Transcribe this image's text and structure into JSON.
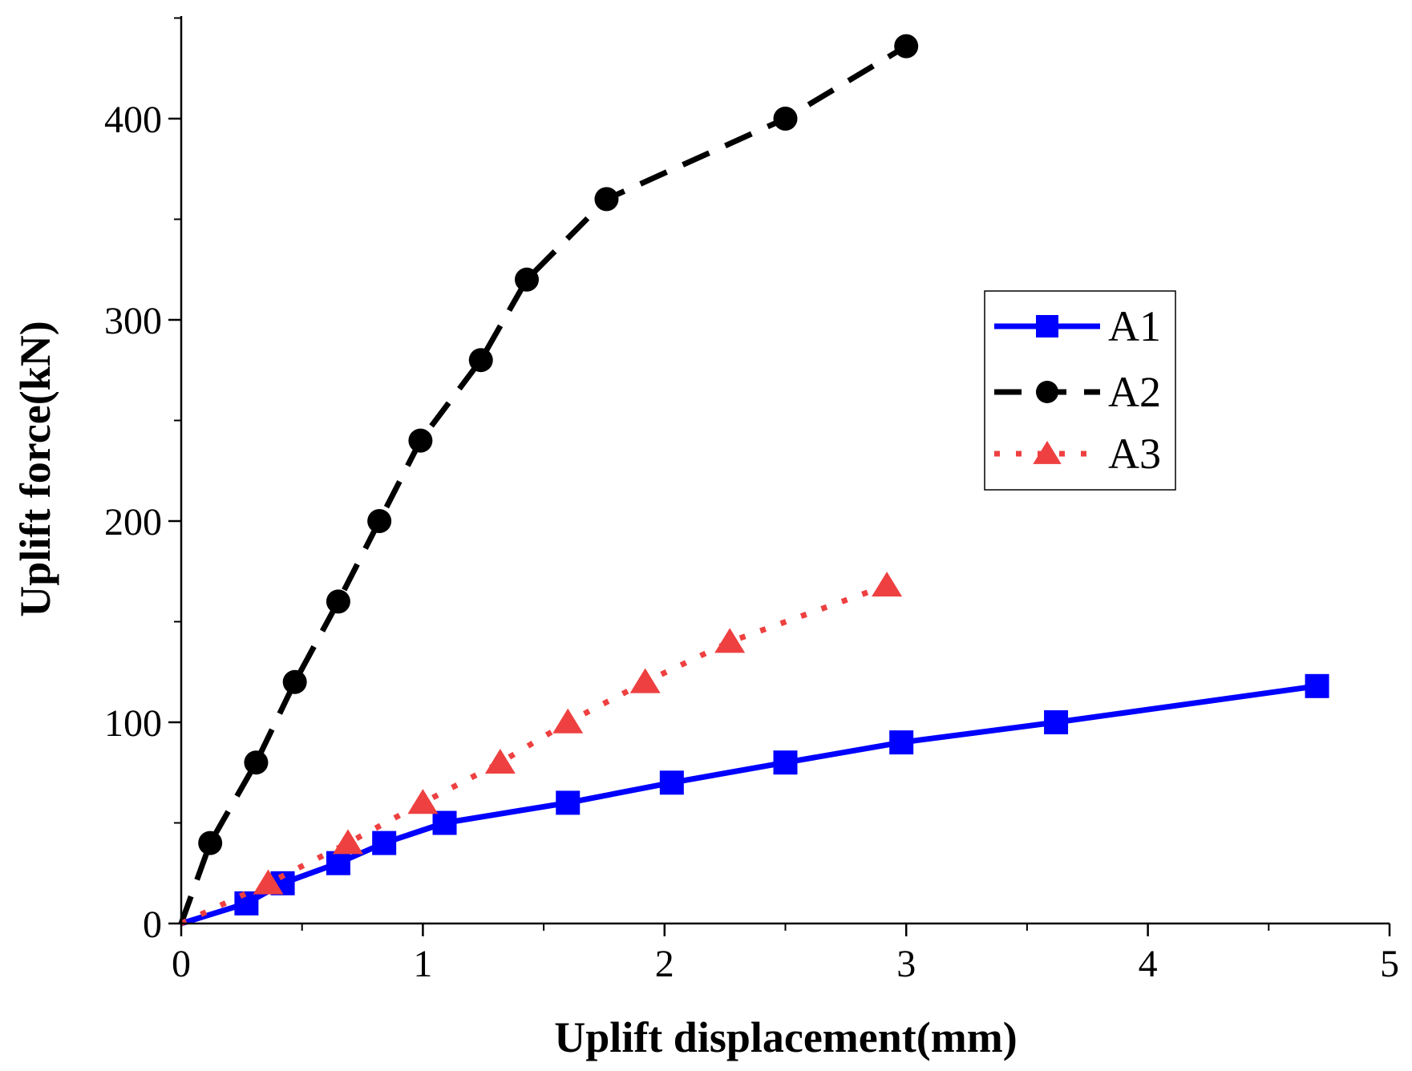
{
  "chart_data": {
    "type": "line",
    "xlabel": "Uplift displacement(mm)",
    "ylabel": "Uplift force(kN)",
    "xlim": [
      0,
      5
    ],
    "ylim": [
      0,
      450
    ],
    "xticks": [
      0,
      1,
      2,
      3,
      4,
      5
    ],
    "yticks": [
      0,
      100,
      200,
      300,
      400
    ],
    "grid": false,
    "legend_position": "center-right",
    "series": [
      {
        "name": "A1",
        "color": "#0000ff",
        "line_style": "solid",
        "marker": "square",
        "x": [
          0,
          0.27,
          0.42,
          0.65,
          0.84,
          1.09,
          1.6,
          2.03,
          2.5,
          2.98,
          3.62,
          4.7
        ],
        "y": [
          0,
          10,
          20,
          30,
          40,
          50,
          60,
          70,
          80,
          90,
          100,
          118
        ]
      },
      {
        "name": "A2",
        "color": "#000000",
        "line_style": "dashed",
        "marker": "circle",
        "x": [
          0,
          0.12,
          0.31,
          0.47,
          0.65,
          0.82,
          0.99,
          1.24,
          1.43,
          1.76,
          2.5,
          3.0
        ],
        "y": [
          0,
          40,
          80,
          120,
          160,
          200,
          240,
          280,
          320,
          360,
          400,
          436
        ]
      },
      {
        "name": "A3",
        "color": "#ee4040",
        "line_style": "dotted",
        "marker": "triangle",
        "x": [
          0,
          0.36,
          0.69,
          1.0,
          1.32,
          1.6,
          1.92,
          2.27,
          2.92
        ],
        "y": [
          0,
          20,
          40,
          60,
          80,
          100,
          120,
          140,
          168
        ]
      }
    ]
  }
}
